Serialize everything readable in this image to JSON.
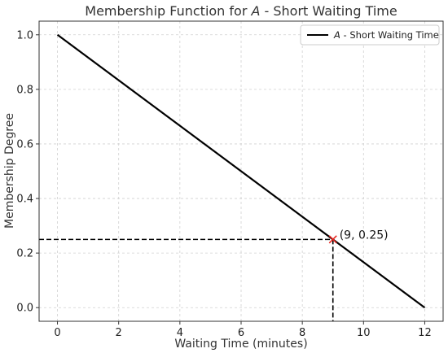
{
  "chart_data": {
    "type": "line",
    "title_prefix": "Membership Function for ",
    "title_var": "A",
    "title_suffix": " - Short Waiting Time",
    "xlabel": "Waiting Time (minutes)",
    "ylabel": "Membership Degree",
    "xlim": [
      -0.6,
      12.6
    ],
    "ylim": [
      -0.05,
      1.05
    ],
    "xticks": [
      0,
      2,
      4,
      6,
      8,
      10,
      12
    ],
    "yticks": [
      0.0,
      0.2,
      0.4,
      0.6,
      0.8,
      1.0
    ],
    "xtick_labels": [
      "0",
      "2",
      "4",
      "6",
      "8",
      "10",
      "12"
    ],
    "ytick_labels": [
      "0.0",
      "0.2",
      "0.4",
      "0.6",
      "0.8",
      "1.0"
    ],
    "grid": true,
    "legend_position": "top-right",
    "series": [
      {
        "name_var": "A",
        "name_suffix": " - Short Waiting Time",
        "color": "#000000",
        "x": [
          0,
          12
        ],
        "y": [
          1.0,
          0.0
        ]
      }
    ],
    "highlight_point": {
      "x": 9,
      "y": 0.25,
      "label": "(9, 0.25)",
      "color": "#e8261f"
    }
  }
}
